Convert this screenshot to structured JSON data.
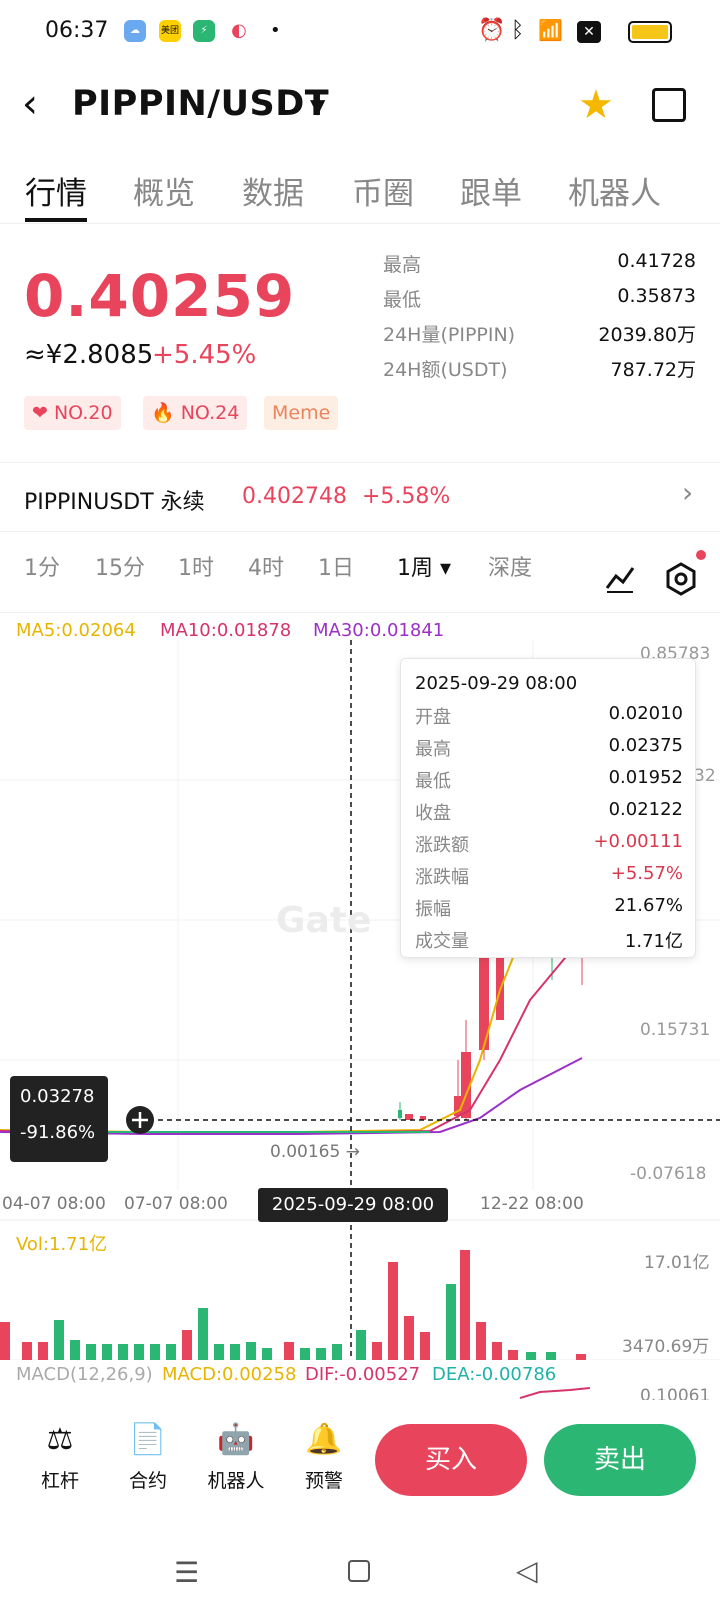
{
  "status_bar": {
    "time": "06:37",
    "app_icons": [
      "weather-icon",
      "meituan-icon",
      "security-icon",
      "app-icon"
    ],
    "meituan_label": "美团",
    "dot": "•"
  },
  "header": {
    "pair": "PIPPIN/USDT"
  },
  "tabs": [
    "行情",
    "概览",
    "数据",
    "币圈",
    "跟单",
    "机器人"
  ],
  "price": {
    "last": "0.40259",
    "cny": "≈¥2.8085",
    "change": "+5.45%"
  },
  "stats": [
    {
      "label": "最高",
      "value": "0.41728"
    },
    {
      "label": "最低",
      "value": "0.35873"
    },
    {
      "label": "24H量(PIPPIN)",
      "value": "2039.80万"
    },
    {
      "label": "24H额(USDT)",
      "value": "787.72万"
    }
  ],
  "badges": [
    "NO.20",
    "NO.24",
    "Meme"
  ],
  "perpetual": {
    "label": "PIPPINUSDT 永续",
    "price": "0.402748",
    "change": "+5.58%"
  },
  "timeframes": [
    "1分",
    "15分",
    "1时",
    "4时",
    "1日",
    "1周 ▾",
    "深度"
  ],
  "ma_legend": {
    "ma5": "MA5:0.02064",
    "ma10": "MA10:0.01878",
    "ma30": "MA30:0.01841"
  },
  "price_axis": [
    "0.85783",
    "32",
    "0.15731",
    "-0.07618"
  ],
  "crosshair": {
    "price": "0.03278",
    "pct": "-91.86%",
    "low_label": "0.00165 →",
    "date": "2025-09-29 08:00"
  },
  "date_axis": [
    "04-07 08:00",
    "07-07 08:00",
    "12-22 08:00"
  ],
  "watermark": "Gate",
  "tooltip": {
    "date": "2025-09-29 08:00",
    "rows": [
      {
        "k": "开盘",
        "v": "0.02010"
      },
      {
        "k": "最高",
        "v": "0.02375"
      },
      {
        "k": "最低",
        "v": "0.01952"
      },
      {
        "k": "收盘",
        "v": "0.02122"
      },
      {
        "k": "涨跌额",
        "v": "+0.00111"
      },
      {
        "k": "涨跌幅",
        "v": "+5.57%"
      },
      {
        "k": "振幅",
        "v": "21.67%"
      },
      {
        "k": "成交量",
        "v": "1.71亿"
      }
    ]
  },
  "volume": {
    "label": "Vol:1.71亿",
    "axis_top": "17.01亿",
    "axis_bottom": "3470.69万"
  },
  "macd": {
    "label": "MACD(12,26,9)",
    "macd": "MACD:0.00258",
    "dif": "DIF:-0.00527",
    "dea": "DEA:-0.00786",
    "axis": "0.10061"
  },
  "bottom_actions": [
    "杠杆",
    "合约",
    "机器人",
    "预警"
  ],
  "buy_label": "买入",
  "sell_label": "卖出",
  "colors": {
    "up": "#e8455d",
    "down": "#2bb673",
    "ma5": "#e8b400",
    "ma10": "#d6336c",
    "ma30": "#9b30c8"
  }
}
